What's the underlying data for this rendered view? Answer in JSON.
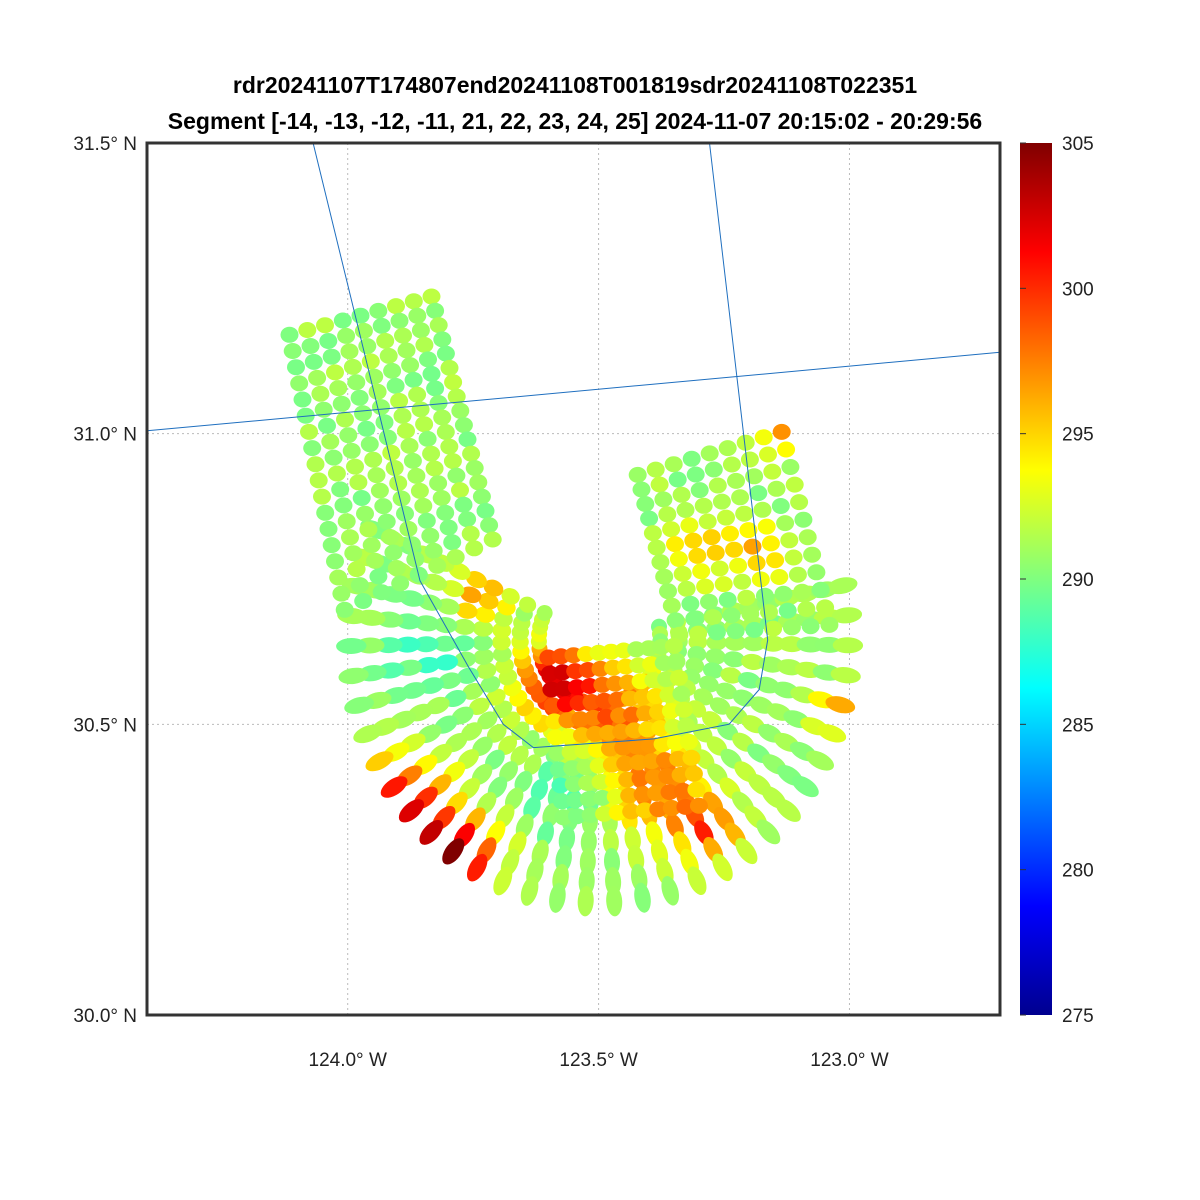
{
  "chart_data": {
    "type": "scatter",
    "title_line1": "rdr20241107T174807end20241108T001819sdr20241108T022351",
    "title_line2": "Segment [-14, -13, -12, -11, 21, 22, 23, 24, 25] 2024-11-07 20:15:02 - 20:29:56",
    "xlim": [
      -124.4,
      -122.7
    ],
    "ylim": [
      30.0,
      31.5
    ],
    "x_ticks": [
      {
        "value": -124.0,
        "label": "124.0° W"
      },
      {
        "value": -123.5,
        "label": "123.5° W"
      },
      {
        "value": -123.0,
        "label": "123.0° W"
      }
    ],
    "y_ticks": [
      {
        "value": 31.5,
        "label": "31.5° N"
      },
      {
        "value": 31.0,
        "label": "31.0° N"
      },
      {
        "value": 30.5,
        "label": "30.5° N"
      },
      {
        "value": 30.0,
        "label": "30.0° N"
      }
    ],
    "grid": true,
    "colormap": "jet",
    "colorbar": {
      "range": [
        275,
        305
      ],
      "ticks": [
        "275",
        "280",
        "285",
        "290",
        "295",
        "300",
        "305"
      ],
      "placement": "right"
    },
    "base_value": 290.8,
    "blocks": [
      {
        "name": "left-swath",
        "corners": [
          [
            -124.116,
            31.17
          ],
          [
            -123.833,
            31.236
          ],
          [
            -124.006,
            30.697
          ],
          [
            -123.711,
            30.818
          ]
        ],
        "cols": 9,
        "rows": 18
      },
      {
        "name": "right-swath",
        "corners": [
          [
            -123.422,
            30.929
          ],
          [
            -123.135,
            31.003
          ],
          [
            -123.339,
            30.654
          ],
          [
            -123.04,
            30.671
          ]
        ],
        "cols": 9,
        "rows": 12
      },
      {
        "name": "center-swath",
        "corners": [
          [
            -123.6,
            30.615
          ],
          [
            -123.35,
            30.635
          ],
          [
            -123.57,
            30.34
          ],
          [
            -123.3,
            30.36
          ]
        ],
        "cols": 11,
        "rows": 11
      }
    ],
    "fan": {
      "center": [
        -123.498,
        30.645
      ],
      "angle_range_deg": [
        -12,
        205
      ],
      "rays": 34,
      "radius_range_deg": [
        0.11,
        0.45
      ],
      "points_per_ray": 11
    },
    "hotspots": [
      [
        -123.588,
        30.577,
        301.5,
        0.05
      ],
      [
        -123.478,
        30.525,
        298.0,
        0.07
      ],
      [
        -123.378,
        30.387,
        297.5,
        0.07
      ],
      [
        -123.777,
        30.267,
        304.5,
        0.05
      ],
      [
        -123.857,
        30.336,
        300.5,
        0.06
      ],
      [
        -123.936,
        30.387,
        297.0,
        0.05
      ],
      [
        -123.279,
        30.318,
        300.0,
        0.04
      ],
      [
        -123.179,
        30.8,
        296.0,
        0.04
      ],
      [
        -123.299,
        30.8,
        296.0,
        0.04
      ],
      [
        -123.737,
        30.714,
        297.0,
        0.04
      ],
      [
        -123.0,
        30.525,
        297.0,
        0.04
      ],
      [
        -123.135,
        31.0,
        296.0,
        0.03
      ],
      [
        -123.837,
        30.628,
        288.0,
        0.06
      ],
      [
        -123.558,
        30.387,
        288.5,
        0.06
      ]
    ],
    "track_lines": [
      [
        [
          -124.069,
          31.5
        ],
        [
          -123.856,
          30.747
        ],
        [
          -123.76,
          30.6
        ],
        [
          -123.69,
          30.5
        ],
        [
          -123.63,
          30.46
        ],
        [
          -123.39,
          30.475
        ],
        [
          -123.24,
          30.5
        ],
        [
          -123.18,
          30.56
        ],
        [
          -123.163,
          30.645
        ],
        [
          -123.279,
          31.5
        ]
      ],
      [
        [
          -124.4,
          31.005
        ],
        [
          -122.7,
          31.14
        ]
      ]
    ],
    "track_color": "#1f6fbf"
  }
}
